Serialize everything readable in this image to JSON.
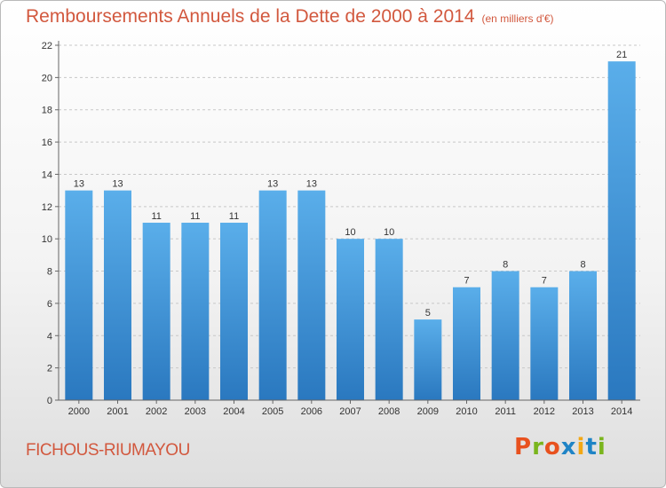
{
  "chart_data": {
    "type": "bar",
    "title": "Remboursements Annuels de la Dette de 2000 à 2014",
    "subtitle": "(en milliers d'€)",
    "xlabel": "",
    "ylabel": "",
    "categories": [
      "2000",
      "2001",
      "2002",
      "2003",
      "2004",
      "2005",
      "2006",
      "2007",
      "2008",
      "2009",
      "2010",
      "2011",
      "2012",
      "2013",
      "2014"
    ],
    "values": [
      13,
      13,
      11,
      11,
      11,
      13,
      13,
      10,
      10,
      5,
      7,
      8,
      7,
      8,
      21
    ],
    "data_labels": [
      "13",
      "13",
      "11",
      "11",
      "11",
      "13",
      "13",
      "10",
      "10",
      "5",
      "7",
      "8",
      "7",
      "8",
      "21"
    ],
    "ylim": [
      0,
      22
    ],
    "yticks": [
      0,
      2,
      4,
      6,
      8,
      10,
      12,
      14,
      16,
      18,
      20,
      22
    ],
    "grid": "horizontal-dashed",
    "legend": "none",
    "bar_color": "#3f8fd2",
    "title_color": "#d2583e"
  },
  "footer": {
    "city": "FICHOUS-RIUMAYOU",
    "logo_letters": [
      "P",
      "r",
      "o",
      "x",
      "i",
      "t",
      "i"
    ],
    "logo_colors": [
      "#e8511e",
      "#7ab51d",
      "#e8511e",
      "#1f84c6",
      "#f3a814",
      "#1f84c6",
      "#7ab51d"
    ]
  }
}
